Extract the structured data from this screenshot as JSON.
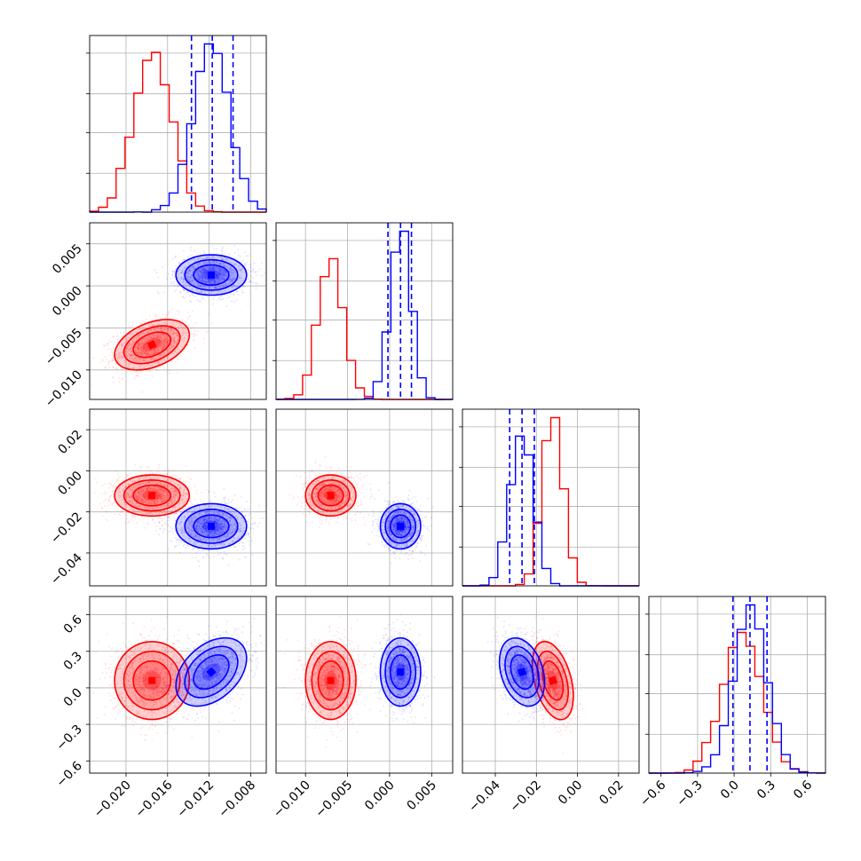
{
  "colors": {
    "red": "#ff0000",
    "blue": "#0000ff",
    "grid": "#b0b0b0"
  },
  "chart_data": {
    "type": "corner",
    "parameters": 4,
    "series": [
      {
        "color": "#ff0000",
        "means": [
          -0.0175,
          -0.007,
          -0.012,
          0.06
        ],
        "sds": [
          0.0018,
          0.0015,
          0.005,
          0.16
        ],
        "corr": {
          "1-0": 0.4,
          "2-0": 0.0,
          "2-1": 0.0,
          "3-0": 0.0,
          "3-1": 0.0,
          "3-2": -0.4
        }
      },
      {
        "color": "#0000ff",
        "means": [
          -0.0118,
          0.0013,
          -0.027,
          0.13
        ],
        "sds": [
          0.0017,
          0.0012,
          0.0055,
          0.14
        ],
        "corr": {
          "1-0": 0.0,
          "2-0": 0.0,
          "2-1": 0.0,
          "3-0": 0.4,
          "3-1": 0.0,
          "3-2": -0.3
        }
      }
    ],
    "quantile_lines_blue": [
      [
        -0.0137,
        -0.0117,
        -0.0097
      ],
      [
        -0.0002,
        0.0013,
        0.0026
      ],
      [
        -0.033,
        -0.027,
        -0.021
      ],
      [
        -0.01,
        0.13,
        0.27
      ]
    ],
    "axes": [
      {
        "range": [
          -0.0235,
          -0.0065
        ],
        "ticks": [
          -0.02,
          -0.016,
          -0.012,
          -0.008
        ],
        "tick_labels": [
          "−0.020",
          "−0.016",
          "−0.012",
          "−0.008"
        ]
      },
      {
        "range": [
          -0.0135,
          0.0075
        ],
        "ticks": [
          -0.01,
          -0.005,
          0.0,
          0.005
        ],
        "tick_labels": [
          "−0.010",
          "−0.005",
          "0.000",
          "0.005"
        ]
      },
      {
        "range": [
          -0.056,
          0.03
        ],
        "ticks": [
          -0.04,
          -0.02,
          0.0,
          0.02
        ],
        "tick_labels": [
          "−0.04",
          "−0.02",
          "0.00",
          "0.02"
        ]
      },
      {
        "range": [
          -0.7,
          0.75
        ],
        "ticks": [
          -0.6,
          -0.3,
          0.0,
          0.3,
          0.6
        ],
        "tick_labels": [
          "−0.6",
          "−0.3",
          "0.0",
          "0.3",
          "0.6"
        ]
      }
    ],
    "grid": true,
    "legend": "none"
  }
}
